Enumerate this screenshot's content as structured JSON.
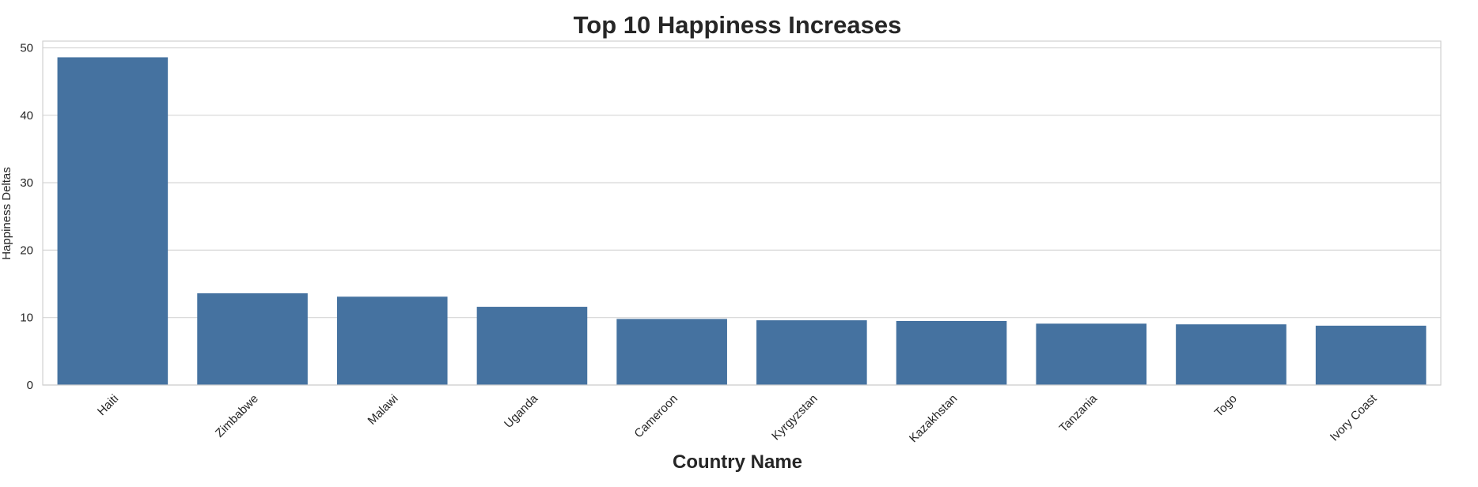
{
  "chart_data": {
    "type": "bar",
    "title": "Top 10 Happiness Increases",
    "xlabel": "Country Name",
    "ylabel": "Happiness Deltas",
    "categories": [
      "Haiti",
      "Zimbabwe",
      "Malawi",
      "Uganda",
      "Cameroon",
      "Kyrgyzstan",
      "Kazakhstan",
      "Tanzania",
      "Togo",
      "Ivory Coast"
    ],
    "values": [
      48.6,
      13.6,
      13.1,
      11.6,
      9.8,
      9.6,
      9.5,
      9.1,
      9.0,
      8.8
    ],
    "ylim": [
      0,
      51
    ],
    "yticks": [
      "0",
      "10",
      "20",
      "30",
      "40",
      "50"
    ],
    "grid": true,
    "bar_color": "#4572a0",
    "grid_color": "#d6d6d6",
    "frame_color": "#d0d0d0"
  }
}
